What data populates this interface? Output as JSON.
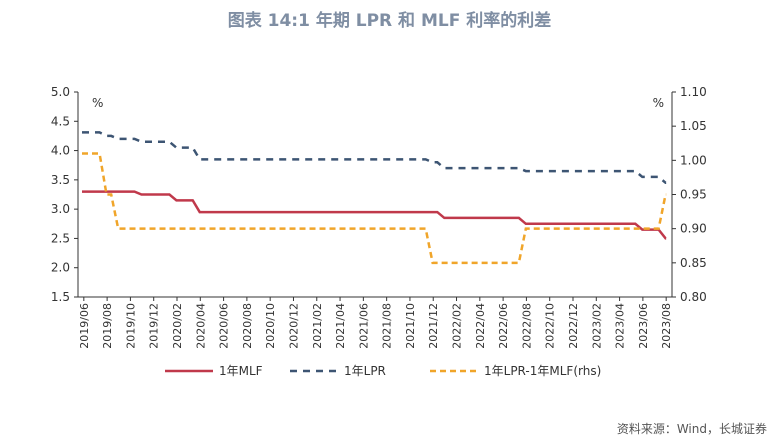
{
  "title": "图表 14:1 年期 LPR 和 MLF 利率的利差",
  "source": "资料来源：Wind，长城证券",
  "chart_data": {
    "type": "line",
    "left_unit": "%",
    "right_unit": "%",
    "left_ylim": [
      1.5,
      5.0
    ],
    "left_yticks": [
      "5.0",
      "4.5",
      "4.0",
      "3.5",
      "3.0",
      "2.5",
      "2.0",
      "1.5"
    ],
    "right_ylim": [
      0.8,
      1.1
    ],
    "right_yticks": [
      "1.10",
      "1.05",
      "1.00",
      "0.95",
      "0.90",
      "0.85",
      "0.80"
    ],
    "x": [
      "2019/06",
      "2019/07",
      "2019/08",
      "2019/09",
      "2019/10",
      "2019/11",
      "2019/12",
      "2020/01",
      "2020/02",
      "2020/03",
      "2020/04",
      "2020/05",
      "2020/06",
      "2020/07",
      "2020/08",
      "2020/09",
      "2020/10",
      "2020/11",
      "2020/12",
      "2021/01",
      "2021/02",
      "2021/03",
      "2021/04",
      "2021/05",
      "2021/06",
      "2021/07",
      "2021/08",
      "2021/09",
      "2021/10",
      "2021/11",
      "2021/12",
      "2022/01",
      "2022/02",
      "2022/03",
      "2022/04",
      "2022/05",
      "2022/06",
      "2022/07",
      "2022/08",
      "2022/09",
      "2022/10",
      "2022/11",
      "2022/12",
      "2023/01",
      "2023/02",
      "2023/03",
      "2023/04",
      "2023/05",
      "2023/06",
      "2023/07",
      "2023/08"
    ],
    "x_tick_labels": [
      "2019/06",
      "2019/08",
      "2019/10",
      "2019/12",
      "2020/02",
      "2020/04",
      "2020/06",
      "2020/08",
      "2020/10",
      "2020/12",
      "2021/02",
      "2021/04",
      "2021/06",
      "2021/08",
      "2021/10",
      "2021/12",
      "2022/02",
      "2022/04",
      "2022/06",
      "2022/08",
      "2022/10",
      "2022/12",
      "2023/02",
      "2023/04",
      "2023/06",
      "2023/08"
    ],
    "grid": false,
    "legend_position": "bottom",
    "series": [
      {
        "name": "1年MLF",
        "axis": "left",
        "color": "#c0394b",
        "style": "solid",
        "values": [
          3.3,
          3.3,
          3.3,
          3.3,
          3.3,
          3.25,
          3.25,
          3.25,
          3.15,
          3.15,
          2.95,
          2.95,
          2.95,
          2.95,
          2.95,
          2.95,
          2.95,
          2.95,
          2.95,
          2.95,
          2.95,
          2.95,
          2.95,
          2.95,
          2.95,
          2.95,
          2.95,
          2.95,
          2.95,
          2.95,
          2.95,
          2.85,
          2.85,
          2.85,
          2.85,
          2.85,
          2.85,
          2.85,
          2.75,
          2.75,
          2.75,
          2.75,
          2.75,
          2.75,
          2.75,
          2.75,
          2.75,
          2.75,
          2.65,
          2.65,
          2.5
        ]
      },
      {
        "name": "1年LPR",
        "axis": "left",
        "color": "#3d5573",
        "style": "dashed",
        "values": [
          4.31,
          4.31,
          4.25,
          4.2,
          4.2,
          4.15,
          4.15,
          4.15,
          4.05,
          4.05,
          3.85,
          3.85,
          3.85,
          3.85,
          3.85,
          3.85,
          3.85,
          3.85,
          3.85,
          3.85,
          3.85,
          3.85,
          3.85,
          3.85,
          3.85,
          3.85,
          3.85,
          3.85,
          3.85,
          3.85,
          3.8,
          3.7,
          3.7,
          3.7,
          3.7,
          3.7,
          3.7,
          3.7,
          3.65,
          3.65,
          3.65,
          3.65,
          3.65,
          3.65,
          3.65,
          3.65,
          3.65,
          3.65,
          3.55,
          3.55,
          3.45
        ]
      },
      {
        "name": "1年LPR-1年MLF(rhs)",
        "axis": "right",
        "color": "#f0a52a",
        "style": "dashed",
        "values": [
          1.01,
          1.01,
          0.95,
          0.9,
          0.9,
          0.9,
          0.9,
          0.9,
          0.9,
          0.9,
          0.9,
          0.9,
          0.9,
          0.9,
          0.9,
          0.9,
          0.9,
          0.9,
          0.9,
          0.9,
          0.9,
          0.9,
          0.9,
          0.9,
          0.9,
          0.9,
          0.9,
          0.9,
          0.9,
          0.9,
          0.85,
          0.85,
          0.85,
          0.85,
          0.85,
          0.85,
          0.85,
          0.85,
          0.9,
          0.9,
          0.9,
          0.9,
          0.9,
          0.9,
          0.9,
          0.9,
          0.9,
          0.9,
          0.9,
          0.9,
          0.95
        ]
      }
    ]
  }
}
